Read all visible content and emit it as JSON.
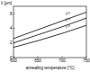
{
  "chart_data": {
    "type": "line",
    "x_label": "annealing temperature [°C]",
    "y_label": "λ [μm]",
    "x": [
      600,
      650,
      700,
      750
    ],
    "series": [
      {
        "name": "3 h",
        "color": "#000000",
        "values": [
          2.6,
          3.8,
          5.0,
          6.2
        ]
      },
      {
        "name": "2 h",
        "color": "#000000",
        "values": [
          2.0,
          3.1,
          4.2,
          5.4
        ]
      },
      {
        "name": "1 h",
        "color": "#000000",
        "values": [
          1.4,
          2.3,
          3.3,
          4.4
        ]
      }
    ],
    "xlim": [
      600,
      750
    ],
    "xticks": [
      600,
      650,
      700,
      750
    ],
    "ylim": [
      0,
      7
    ],
    "yticks": [
      0,
      2,
      4,
      6
    ],
    "grid": false
  }
}
